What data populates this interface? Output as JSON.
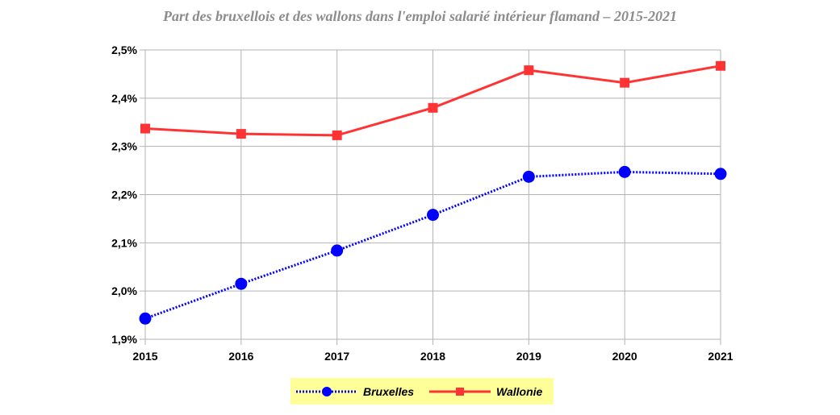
{
  "chart_data": {
    "type": "line",
    "title": "Part des bruxellois et des wallons dans l'emploi salarié intérieur flamand – 2015-2021",
    "x": [
      "2015",
      "2016",
      "2017",
      "2018",
      "2019",
      "2020",
      "2021"
    ],
    "y_ticks": [
      "1,9%",
      "2,0%",
      "2,1%",
      "2,2%",
      "2,3%",
      "2,4%",
      "2,5%"
    ],
    "ylim": [
      1.9,
      2.5
    ],
    "grid": true,
    "legend_position": "bottom",
    "series": [
      {
        "name": "Bruxelles",
        "color": "#0000ff",
        "style": "dotted",
        "marker": "circle",
        "values": [
          1.943,
          2.015,
          2.084,
          2.158,
          2.237,
          2.247,
          2.243
        ]
      },
      {
        "name": "Wallonie",
        "color": "#ff3333",
        "style": "solid",
        "marker": "square",
        "values": [
          2.337,
          2.326,
          2.323,
          2.38,
          2.458,
          2.432,
          2.467
        ]
      }
    ],
    "legend_bg": "#ffff99"
  }
}
